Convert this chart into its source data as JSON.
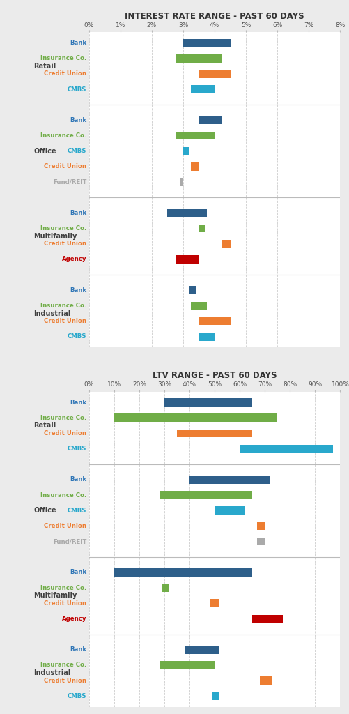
{
  "chart1_title": "INTEREST RATE RANGE - PAST 60 DAYS",
  "chart2_title": "LTV RANGE - PAST 60 DAYS",
  "ir_xlim": [
    0,
    8
  ],
  "ir_xticks": [
    0,
    1,
    2,
    3,
    4,
    5,
    6,
    7,
    8
  ],
  "ltv_xlim": [
    0,
    100
  ],
  "ltv_xticks": [
    0,
    10,
    20,
    30,
    40,
    50,
    60,
    70,
    80,
    90,
    100
  ],
  "colors": {
    "Bank": "#2E5F8A",
    "Insurance Co.": "#70AD47",
    "Credit Union": "#ED7D31",
    "CMBS": "#29A8CC",
    "Agency": "#C00000",
    "Fund/REIT": "#AAAAAA"
  },
  "label_colors": {
    "Bank": "#2E75B6",
    "Insurance Co.": "#70AD47",
    "Credit Union": "#ED7D31",
    "CMBS": "#29A8CC",
    "Agency": "#C00000",
    "Fund/REIT": "#AAAAAA"
  },
  "section_label_color": "#404040",
  "background_color": "#EBEBEB",
  "chart_bg": "#FFFFFF",
  "ir_data": {
    "Retail": {
      "Bank": [
        3.0,
        4.5
      ],
      "Insurance Co.": [
        2.75,
        4.25
      ],
      "Credit Union": [
        3.5,
        4.5
      ],
      "CMBS": [
        3.25,
        4.0
      ]
    },
    "Office": {
      "Bank": [
        3.5,
        4.25
      ],
      "Insurance Co.": [
        2.75,
        4.0
      ],
      "CMBS": [
        3.0,
        3.2
      ],
      "Credit Union": [
        3.25,
        3.5
      ],
      "Fund/REIT": [
        2.9,
        3.0
      ]
    },
    "Multifamily": {
      "Bank": [
        2.5,
        3.75
      ],
      "Insurance Co.": [
        3.5,
        3.7
      ],
      "Credit Union": [
        4.25,
        4.5
      ],
      "Agency": [
        2.75,
        3.5
      ]
    },
    "Industrial": {
      "Bank": [
        3.2,
        3.4
      ],
      "Insurance Co.": [
        3.25,
        3.75
      ],
      "Credit Union": [
        3.5,
        4.5
      ],
      "CMBS": [
        3.5,
        4.0
      ]
    }
  },
  "ltv_data": {
    "Retail": {
      "Bank": [
        30,
        65
      ],
      "Insurance Co.": [
        10,
        75
      ],
      "Credit Union": [
        35,
        65
      ],
      "CMBS": [
        60,
        97
      ]
    },
    "Office": {
      "Bank": [
        40,
        72
      ],
      "Insurance Co.": [
        28,
        65
      ],
      "CMBS": [
        50,
        62
      ],
      "Credit Union": [
        67,
        70
      ],
      "Fund/REIT": [
        67,
        70
      ]
    },
    "Multifamily": {
      "Bank": [
        10,
        65
      ],
      "Insurance Co.": [
        29,
        32
      ],
      "Credit Union": [
        48,
        52
      ],
      "Agency": [
        65,
        77
      ]
    },
    "Industrial": {
      "Bank": [
        38,
        52
      ],
      "Insurance Co.": [
        28,
        50
      ],
      "Credit Union": [
        68,
        73
      ],
      "CMBS": [
        49,
        52
      ]
    }
  },
  "ir_sections_order": [
    "Retail",
    "Office",
    "Multifamily",
    "Industrial"
  ],
  "ir_section_lenders": {
    "Retail": [
      "Bank",
      "Insurance Co.",
      "Credit Union",
      "CMBS"
    ],
    "Office": [
      "Bank",
      "Insurance Co.",
      "CMBS",
      "Credit Union",
      "Fund/REIT"
    ],
    "Multifamily": [
      "Bank",
      "Insurance Co.",
      "Credit Union",
      "Agency"
    ],
    "Industrial": [
      "Bank",
      "Insurance Co.",
      "Credit Union",
      "CMBS"
    ]
  },
  "ltv_sections_order": [
    "Retail",
    "Office",
    "Multifamily",
    "Industrial"
  ],
  "ltv_section_lenders": {
    "Retail": [
      "Bank",
      "Insurance Co.",
      "Credit Union",
      "CMBS"
    ],
    "Office": [
      "Bank",
      "Insurance Co.",
      "CMBS",
      "Credit Union",
      "Fund/REIT"
    ],
    "Multifamily": [
      "Bank",
      "Insurance Co.",
      "Credit Union",
      "Agency"
    ],
    "Industrial": [
      "Bank",
      "Insurance Co.",
      "Credit Union",
      "CMBS"
    ]
  }
}
